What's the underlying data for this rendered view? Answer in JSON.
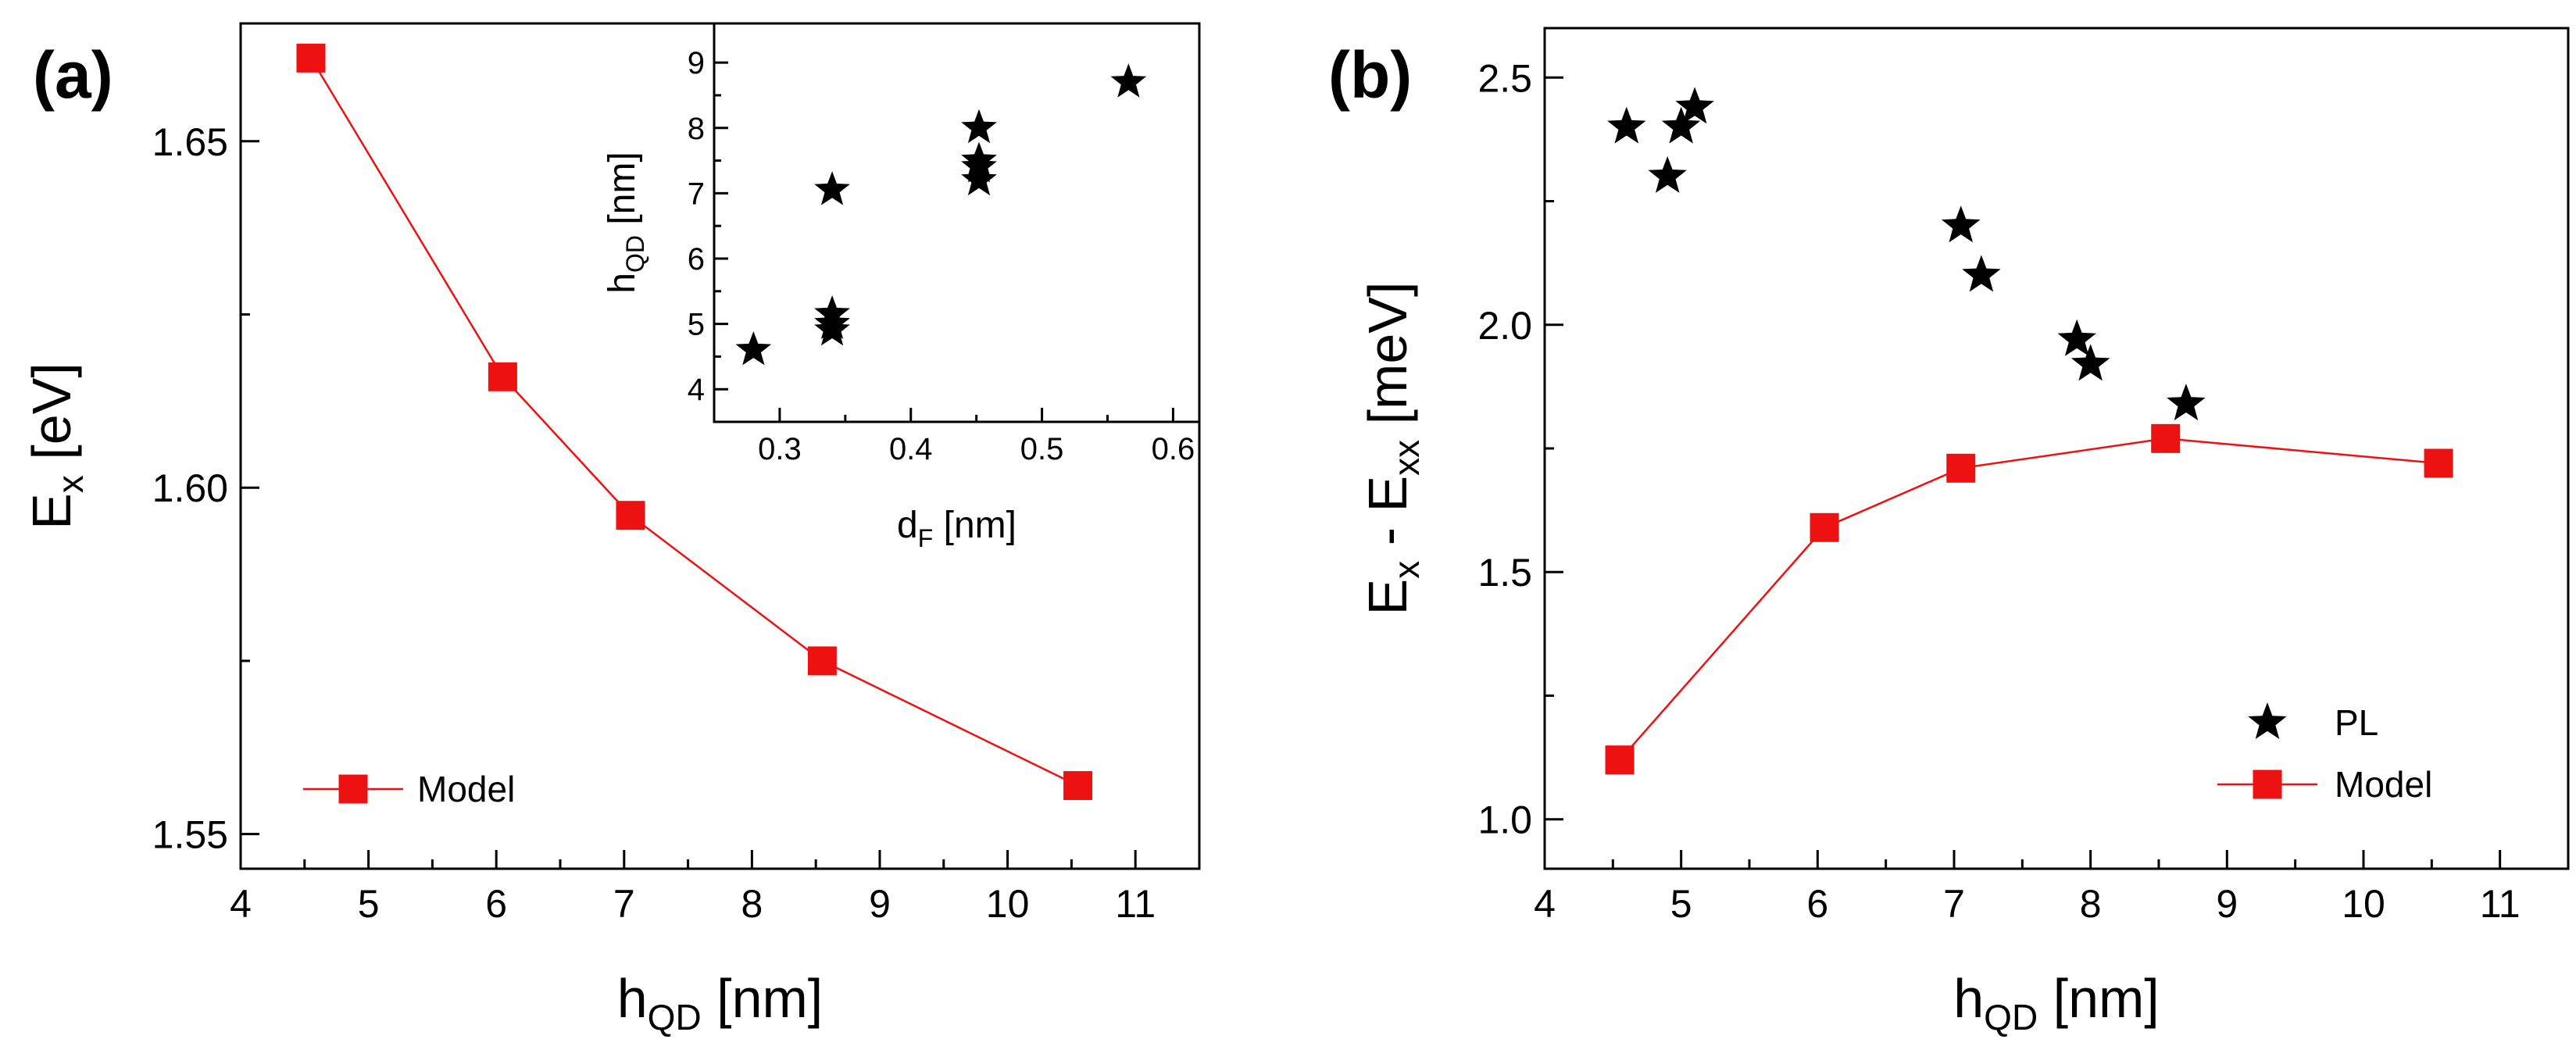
{
  "chart_data": [
    {
      "panel": "(a)",
      "type": "line",
      "xlabel": "h",
      "xlabel_sub": "QD",
      "xlabel_unit": " [nm]",
      "ylabel": "E",
      "ylabel_sub": "x",
      "ylabel_unit": " [eV]",
      "xlim": [
        4,
        11.5
      ],
      "ylim": [
        1.545,
        1.667
      ],
      "xticks": [
        4,
        5,
        6,
        7,
        8,
        9,
        10,
        11
      ],
      "xtick_labels": [
        "4",
        "5",
        "6",
        "7",
        "8",
        "9",
        "10",
        "11"
      ],
      "yticks": [
        1.55,
        1.6,
        1.65
      ],
      "ytick_labels": [
        "1.55",
        "1.60",
        "1.65"
      ],
      "legend": "bottom-left",
      "series": [
        {
          "name": "Model",
          "x": [
            4.55,
            6.05,
            7.05,
            8.55,
            10.55
          ],
          "y": [
            1.662,
            1.616,
            1.596,
            1.575,
            1.557
          ],
          "color": "#ee1111"
        }
      ],
      "inset": {
        "type": "scatter",
        "xlabel": "d",
        "xlabel_sub": "F",
        "xlabel_unit": " [nm]",
        "ylabel": "h",
        "ylabel_sub": "QD",
        "ylabel_unit": " [nm]",
        "xlim": [
          0.25,
          0.62
        ],
        "ylim": [
          3.5,
          9.6
        ],
        "xticks": [
          0.3,
          0.4,
          0.5,
          0.6
        ],
        "xtick_labels": [
          "0.3",
          "0.4",
          "0.5",
          "0.6"
        ],
        "yticks": [
          4,
          5,
          6,
          7,
          8,
          9
        ],
        "ytick_labels": [
          "4",
          "5",
          "6",
          "7",
          "8",
          "9"
        ],
        "x": [
          0.28,
          0.34,
          0.34,
          0.34,
          0.34,
          0.452,
          0.452,
          0.452,
          0.452,
          0.566
        ],
        "y": [
          4.6,
          4.9,
          5.0,
          5.15,
          7.05,
          7.2,
          7.4,
          7.5,
          8.0,
          8.7
        ],
        "color": "#000000"
      }
    },
    {
      "panel": "(b)",
      "type": "scatter+line",
      "xlabel": "h",
      "xlabel_sub": "QD",
      "xlabel_unit": " [nm]",
      "ylabel_parts": [
        "E",
        "x",
        " - E",
        "xx",
        " [meV]"
      ],
      "xlim": [
        4,
        11.5
      ],
      "ylim": [
        0.9,
        2.6
      ],
      "xticks": [
        4,
        5,
        6,
        7,
        8,
        9,
        10,
        11
      ],
      "xtick_labels": [
        "4",
        "5",
        "6",
        "7",
        "8",
        "9",
        "10",
        "11"
      ],
      "yticks": [
        1.0,
        1.5,
        2.0,
        2.5
      ],
      "ytick_labels": [
        "1.0",
        "1.5",
        "2.0",
        "2.5"
      ],
      "legend": "bottom-right",
      "series": [
        {
          "name": "PL",
          "marker": "star",
          "x": [
            4.6,
            4.9,
            5.0,
            5.1,
            7.05,
            7.2,
            7.9,
            8.0,
            8.7
          ],
          "y": [
            2.4,
            2.3,
            2.4,
            2.44,
            2.2,
            2.1,
            1.97,
            1.92,
            1.84
          ],
          "color": "#000000"
        },
        {
          "name": "Model",
          "marker": "square",
          "x": [
            4.55,
            6.05,
            7.05,
            8.55,
            10.55
          ],
          "y": [
            1.12,
            1.59,
            1.71,
            1.77,
            1.72
          ],
          "color": "#ee1111"
        }
      ]
    }
  ]
}
